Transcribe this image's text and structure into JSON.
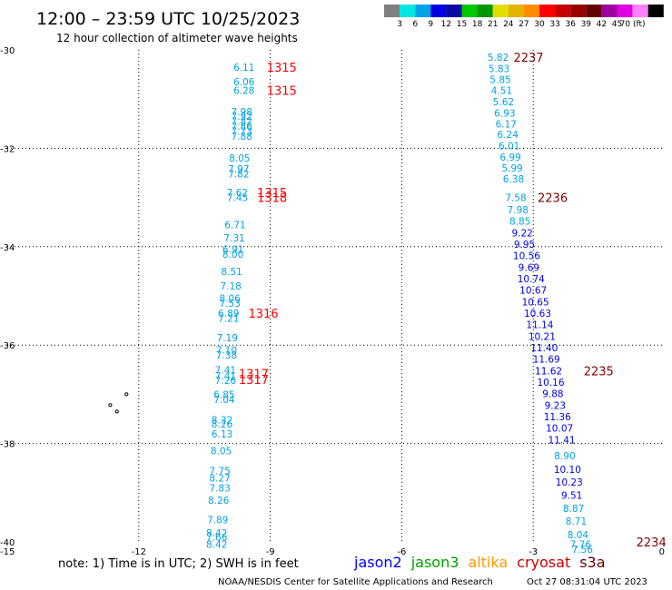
{
  "header": {
    "title": "12:00 – 23:59 UTC 10/25/2023",
    "subtitle": "12 hour collection of altimeter wave heights"
  },
  "colorbar": {
    "colors": [
      "#7f7f7f",
      "#00e5e5",
      "#00a3e5",
      "#0000e5",
      "#0a0aa0",
      "#00c800",
      "#009600",
      "#dfdf00",
      "#e5b200",
      "#ff8c00",
      "#ff0000",
      "#c80000",
      "#960000",
      "#640000",
      "#a000a0",
      "#e000e0",
      "#ff80ff",
      "#000000"
    ],
    "labels": [
      "3",
      "6",
      "9",
      "12",
      "15",
      "18",
      "21",
      "24",
      "27",
      "30",
      "33",
      "36",
      "39",
      "42",
      "45",
      "70 (ft)"
    ]
  },
  "footer": {
    "note": "note:  1) Time is in UTC;  2) SWH is in feet",
    "satellites": [
      {
        "name": "jason2",
        "color": "#0000ff"
      },
      {
        "name": "jason3",
        "color": "#00a000"
      },
      {
        "name": "altika",
        "color": "#ff9900"
      },
      {
        "name": "cryosat",
        "color": "#cc0000"
      },
      {
        "name": "s3a",
        "color": "#660000"
      }
    ],
    "credit": "NOAA/NESDIS Center for Satellite Applications and Research",
    "timestamp": "Oct 27 08:31:04 UTC 2023"
  },
  "chart_data": {
    "type": "scatter",
    "title": "12:00 – 23:59 UTC 10/25/2023",
    "xlim": [
      -15,
      0
    ],
    "ylim": [
      -40,
      -30
    ],
    "xticks": [
      -15,
      -12,
      -9,
      -6,
      -3,
      0
    ],
    "xtick_labels": [
      "-15",
      "-12",
      "-9",
      "-6",
      "-3",
      "0"
    ],
    "yticks": [
      -30,
      -32,
      -34,
      -36,
      -38,
      -40
    ],
    "ytick_labels": [
      "-30",
      "-32",
      "-34",
      "-36",
      "-38",
      "-40"
    ],
    "grid": true,
    "series": [
      {
        "name": "west track",
        "points": [
          {
            "x": -9.6,
            "y": -30.35,
            "v": "6.11"
          },
          {
            "x": -9.6,
            "y": -30.65,
            "v": "6.06"
          },
          {
            "x": -9.6,
            "y": -30.82,
            "v": "6.28"
          },
          {
            "x": -9.65,
            "y": -31.25,
            "v": "7.98"
          },
          {
            "x": -9.65,
            "y": -31.35,
            "v": "7.92"
          },
          {
            "x": -9.65,
            "y": -31.45,
            "v": "7.82"
          },
          {
            "x": -9.65,
            "y": -31.55,
            "v": "7.86"
          },
          {
            "x": -9.65,
            "y": -31.65,
            "v": "7.73"
          },
          {
            "x": -9.65,
            "y": -31.75,
            "v": "7.88"
          },
          {
            "x": -9.7,
            "y": -32.2,
            "v": "8.05"
          },
          {
            "x": -9.72,
            "y": -32.42,
            "v": "7.97"
          },
          {
            "x": -9.72,
            "y": -32.52,
            "v": "7.82"
          },
          {
            "x": -9.75,
            "y": -32.9,
            "v": "7.62"
          },
          {
            "x": -9.75,
            "y": -33.0,
            "v": "7.45"
          },
          {
            "x": -9.8,
            "y": -33.55,
            "v": "6.71"
          },
          {
            "x": -9.82,
            "y": -33.82,
            "v": "7.31"
          },
          {
            "x": -9.85,
            "y": -34.05,
            "v": "6.91"
          },
          {
            "x": -9.85,
            "y": -34.15,
            "v": "8.00"
          },
          {
            "x": -9.88,
            "y": -34.5,
            "v": "8.51"
          },
          {
            "x": -9.9,
            "y": -34.8,
            "v": "7.18"
          },
          {
            "x": -9.92,
            "y": -35.05,
            "v": "8.06"
          },
          {
            "x": -9.92,
            "y": -35.15,
            "v": "7.53"
          },
          {
            "x": -9.95,
            "y": -35.35,
            "v": "6.89"
          },
          {
            "x": -9.95,
            "y": -35.45,
            "v": "7.21"
          },
          {
            "x": -9.98,
            "y": -35.85,
            "v": "7.19"
          },
          {
            "x": -10.0,
            "y": -36.1,
            "v": "7.10"
          },
          {
            "x": -10.0,
            "y": -36.2,
            "v": "7.38"
          },
          {
            "x": -10.02,
            "y": -36.5,
            "v": "7.41"
          },
          {
            "x": -10.02,
            "y": -36.62,
            "v": "7.41"
          },
          {
            "x": -10.02,
            "y": -36.72,
            "v": "7.26"
          },
          {
            "x": -10.05,
            "y": -37.0,
            "v": "6.85"
          },
          {
            "x": -10.05,
            "y": -37.1,
            "v": "7.04"
          },
          {
            "x": -10.1,
            "y": -37.52,
            "v": "8.32"
          },
          {
            "x": -10.1,
            "y": -37.6,
            "v": "8.26"
          },
          {
            "x": -10.1,
            "y": -37.8,
            "v": "6.13"
          },
          {
            "x": -10.12,
            "y": -38.15,
            "v": "8.05"
          },
          {
            "x": -10.15,
            "y": -38.55,
            "v": "7.75"
          },
          {
            "x": -10.15,
            "y": -38.7,
            "v": "8.27"
          },
          {
            "x": -10.15,
            "y": -38.9,
            "v": "7.83"
          },
          {
            "x": -10.18,
            "y": -39.15,
            "v": "8.26"
          },
          {
            "x": -10.2,
            "y": -39.55,
            "v": "7.89"
          },
          {
            "x": -10.22,
            "y": -39.82,
            "v": "8.42"
          },
          {
            "x": -10.22,
            "y": -39.9,
            "v": "7.66"
          },
          {
            "x": -10.22,
            "y": -40.05,
            "v": "8.42"
          }
        ]
      },
      {
        "name": "east track",
        "points": [
          {
            "x": -3.8,
            "y": -30.15,
            "v": "5.82"
          },
          {
            "x": -3.78,
            "y": -30.38,
            "v": "5.83"
          },
          {
            "x": -3.75,
            "y": -30.6,
            "v": "5.85"
          },
          {
            "x": -3.72,
            "y": -30.82,
            "v": "4.51"
          },
          {
            "x": -3.68,
            "y": -31.05,
            "v": "5.62"
          },
          {
            "x": -3.65,
            "y": -31.28,
            "v": "6.93"
          },
          {
            "x": -3.62,
            "y": -31.5,
            "v": "6.17"
          },
          {
            "x": -3.58,
            "y": -31.72,
            "v": "6.24"
          },
          {
            "x": -3.55,
            "y": -31.95,
            "v": "6.01"
          },
          {
            "x": -3.52,
            "y": -32.18,
            "v": "6.99"
          },
          {
            "x": -3.48,
            "y": -32.4,
            "v": "5.99"
          },
          {
            "x": -3.45,
            "y": -32.62,
            "v": "6.38"
          },
          {
            "x": -3.4,
            "y": -33.0,
            "v": "7.58"
          },
          {
            "x": -3.35,
            "y": -33.25,
            "v": "7.98"
          },
          {
            "x": -3.3,
            "y": -33.48,
            "v": "8.85"
          },
          {
            "x": -3.25,
            "y": -33.72,
            "v": "9.22"
          },
          {
            "x": -3.2,
            "y": -33.95,
            "v": "9.95"
          },
          {
            "x": -3.15,
            "y": -34.18,
            "v": "10.56"
          },
          {
            "x": -3.1,
            "y": -34.42,
            "v": "9.69"
          },
          {
            "x": -3.05,
            "y": -34.65,
            "v": "10.74"
          },
          {
            "x": -3.0,
            "y": -34.88,
            "v": "10.67"
          },
          {
            "x": -2.95,
            "y": -35.12,
            "v": "10.65"
          },
          {
            "x": -2.9,
            "y": -35.35,
            "v": "10.63"
          },
          {
            "x": -2.85,
            "y": -35.58,
            "v": "11.14"
          },
          {
            "x": -2.8,
            "y": -35.82,
            "v": "10.21"
          },
          {
            "x": -2.75,
            "y": -36.05,
            "v": "11.40"
          },
          {
            "x": -2.7,
            "y": -36.28,
            "v": "11.69"
          },
          {
            "x": -2.65,
            "y": -36.52,
            "v": "11.62"
          },
          {
            "x": -2.6,
            "y": -36.75,
            "v": "10.16"
          },
          {
            "x": -2.55,
            "y": -36.98,
            "v": "9.88"
          },
          {
            "x": -2.5,
            "y": -37.22,
            "v": "9.23"
          },
          {
            "x": -2.45,
            "y": -37.45,
            "v": "11.36"
          },
          {
            "x": -2.4,
            "y": -37.68,
            "v": "10.07"
          },
          {
            "x": -2.35,
            "y": -37.92,
            "v": "11.41"
          },
          {
            "x": -2.28,
            "y": -38.25,
            "v": "8.90"
          },
          {
            "x": -2.22,
            "y": -38.52,
            "v": "10.10"
          },
          {
            "x": -2.18,
            "y": -38.78,
            "v": "10.23"
          },
          {
            "x": -2.12,
            "y": -39.05,
            "v": "9.51"
          },
          {
            "x": -2.08,
            "y": -39.32,
            "v": "8.87"
          },
          {
            "x": -2.02,
            "y": -39.58,
            "v": "8.71"
          },
          {
            "x": -1.98,
            "y": -39.85,
            "v": "8.04"
          },
          {
            "x": -1.92,
            "y": -40.05,
            "v": "7.76"
          },
          {
            "x": -1.88,
            "y": -40.15,
            "v": "7.56"
          }
        ]
      }
    ],
    "time_labels": [
      {
        "x": -9.08,
        "y": -30.35,
        "t": "1315",
        "color": "#ff0000"
      },
      {
        "x": -9.08,
        "y": -30.82,
        "t": "1315",
        "color": "#ff0000"
      },
      {
        "x": -9.3,
        "y": -32.9,
        "t": "1315",
        "color": "#ff0000"
      },
      {
        "x": -9.3,
        "y": -33.0,
        "t": "1318",
        "color": "#ff0000"
      },
      {
        "x": -9.5,
        "y": -35.35,
        "t": "1316",
        "color": "#ff0000"
      },
      {
        "x": -9.72,
        "y": -36.58,
        "t": "1317",
        "color": "#ff0000"
      },
      {
        "x": -9.72,
        "y": -36.7,
        "t": "1317",
        "color": "#ff0000"
      },
      {
        "x": -3.45,
        "y": -30.15,
        "t": "2237",
        "color": "#800000"
      },
      {
        "x": -2.9,
        "y": -33.0,
        "t": "2236",
        "color": "#800000"
      },
      {
        "x": -1.85,
        "y": -36.52,
        "t": "2235",
        "color": "#800000"
      },
      {
        "x": -0.65,
        "y": -40.0,
        "t": "2234",
        "color": "#800000"
      }
    ],
    "land": [
      {
        "x": -12.28,
        "y": -37.0
      },
      {
        "x": -12.65,
        "y": -37.22
      },
      {
        "x": -12.5,
        "y": -37.35
      }
    ]
  }
}
